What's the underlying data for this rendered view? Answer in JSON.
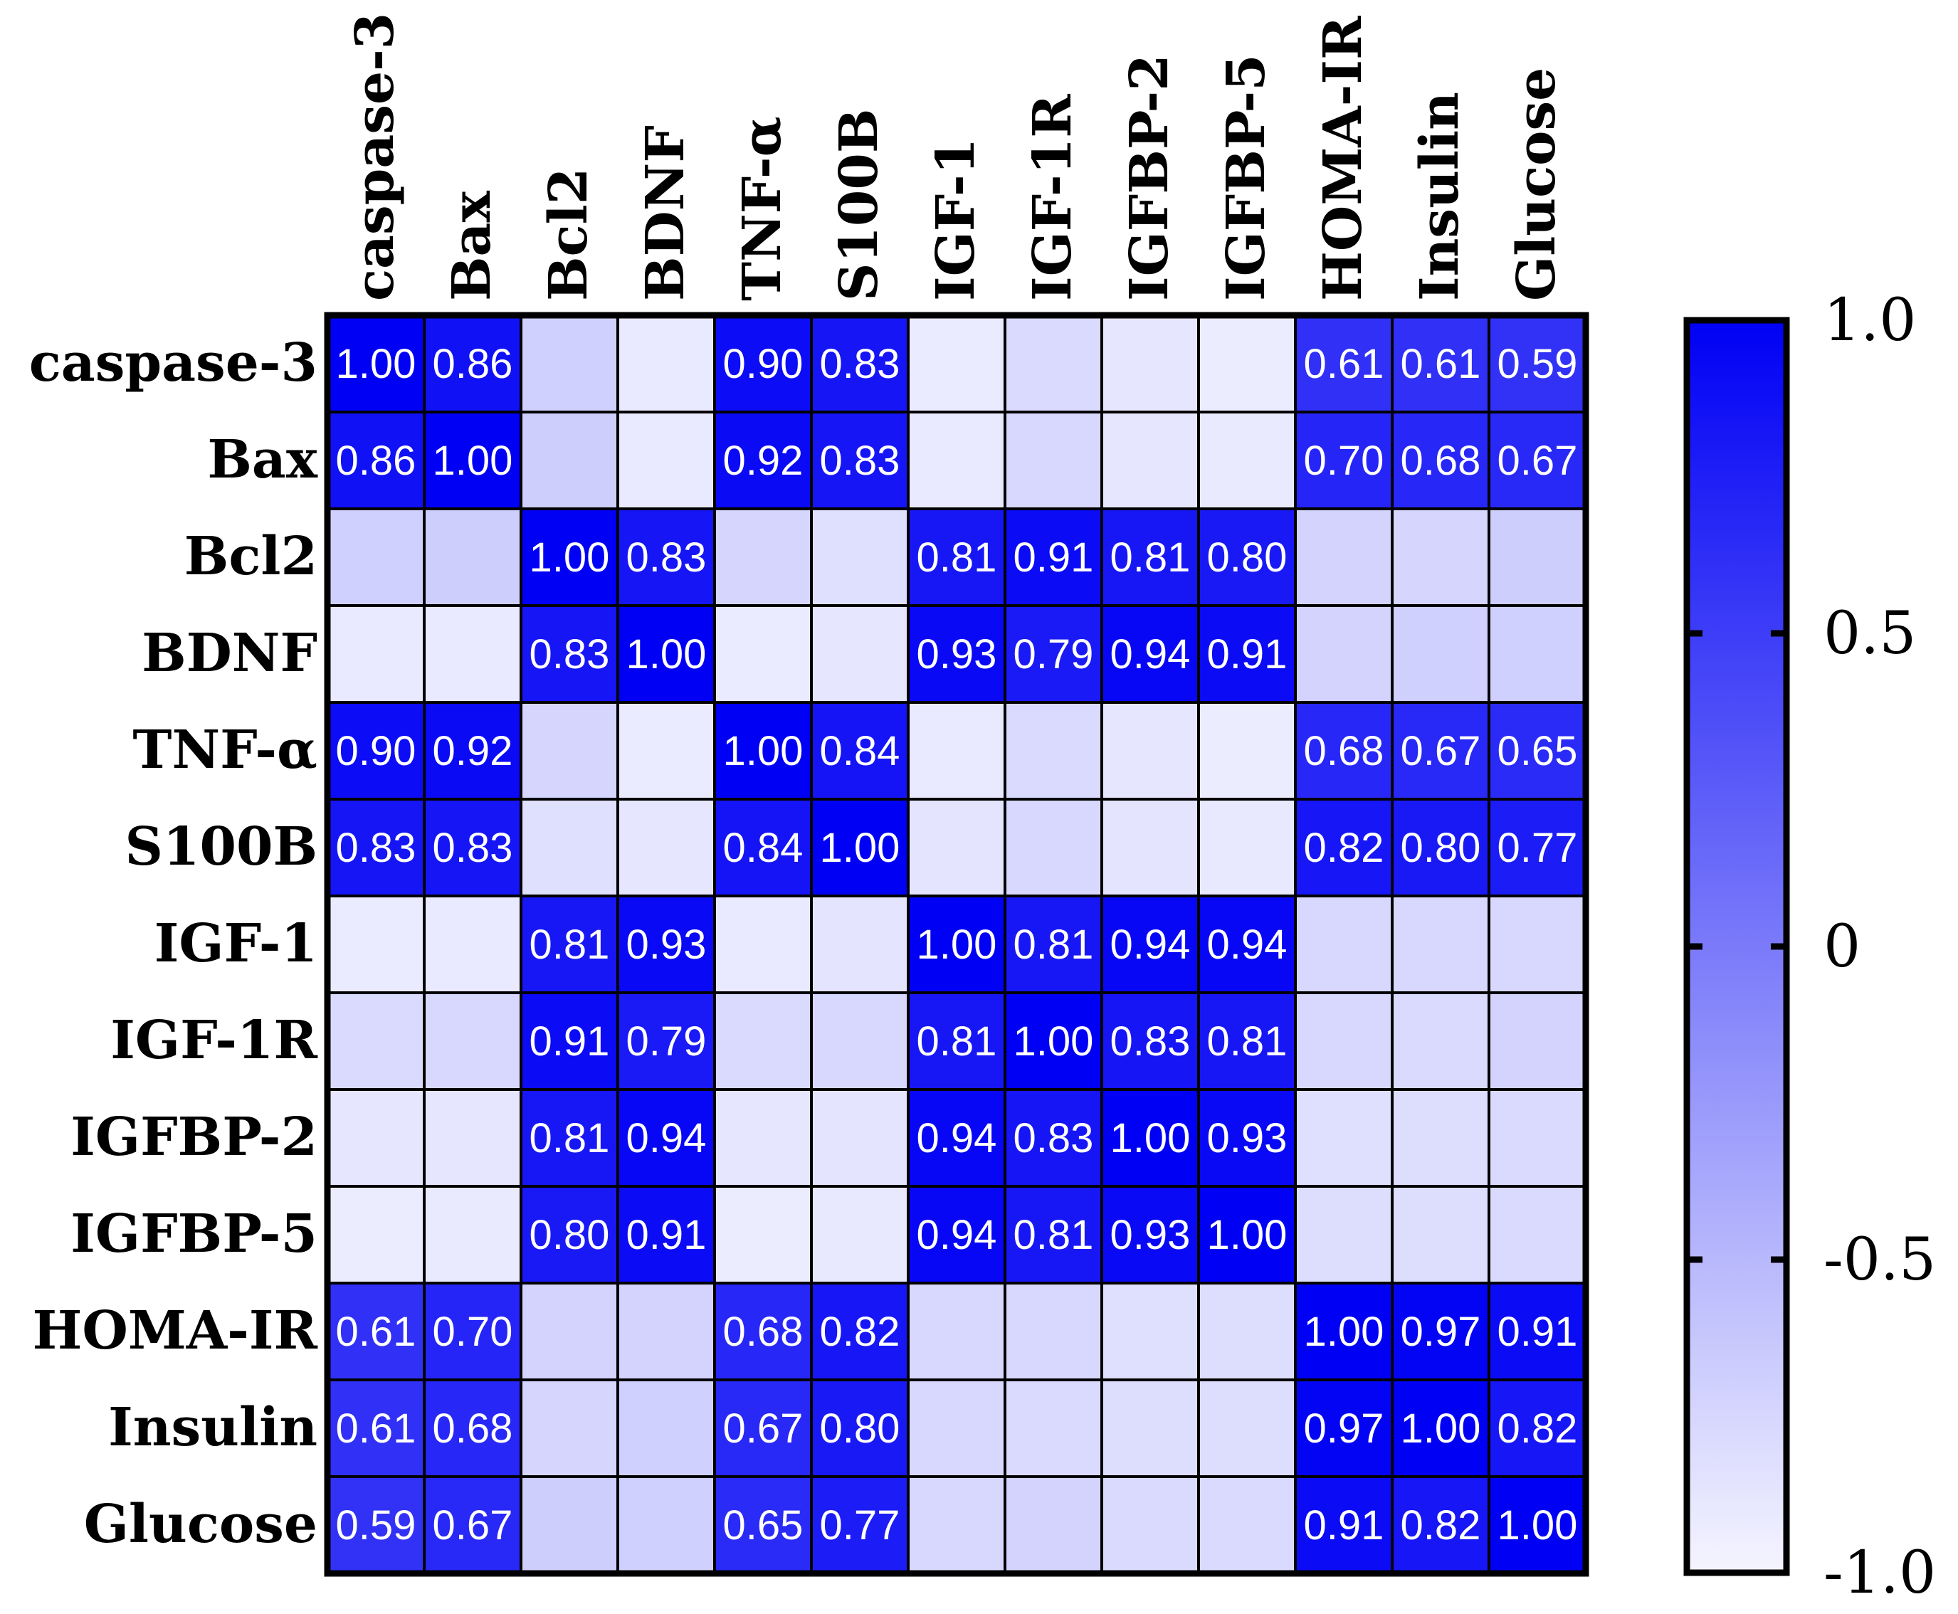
{
  "chart_data": {
    "type": "heatmap",
    "title": "",
    "variables": [
      "caspase-3",
      "Bax",
      "Bcl2",
      "BDNF",
      "TNF-α",
      "S100B",
      "IGF-1",
      "IGF-1R",
      "IGFBP-2",
      "IGFBP-5",
      "HOMA-IR",
      "Insulin",
      "Glucose"
    ],
    "matrix": [
      [
        1.0,
        0.86,
        -0.7,
        -0.9,
        0.9,
        0.83,
        -0.92,
        -0.78,
        -0.88,
        -0.93,
        0.61,
        0.61,
        0.59
      ],
      [
        0.86,
        1.0,
        -0.68,
        -0.9,
        0.92,
        0.83,
        -0.9,
        -0.76,
        -0.88,
        -0.91,
        0.7,
        0.68,
        0.67
      ],
      [
        -0.7,
        -0.68,
        1.0,
        0.83,
        -0.74,
        -0.82,
        0.81,
        0.91,
        0.81,
        0.8,
        -0.72,
        -0.74,
        -0.68
      ],
      [
        -0.9,
        -0.9,
        0.83,
        1.0,
        -0.92,
        -0.88,
        0.93,
        0.79,
        0.94,
        0.91,
        -0.72,
        -0.7,
        -0.7
      ],
      [
        0.9,
        0.92,
        -0.74,
        -0.92,
        1.0,
        0.84,
        -0.9,
        -0.78,
        -0.88,
        -0.93,
        0.68,
        0.67,
        0.65
      ],
      [
        0.83,
        0.83,
        -0.82,
        -0.88,
        0.84,
        1.0,
        -0.86,
        -0.76,
        -0.86,
        -0.89,
        0.82,
        0.8,
        0.77
      ],
      [
        -0.92,
        -0.9,
        0.81,
        0.93,
        -0.9,
        -0.86,
        1.0,
        0.81,
        0.94,
        0.94,
        -0.76,
        -0.76,
        -0.76
      ],
      [
        -0.78,
        -0.76,
        0.91,
        0.79,
        -0.78,
        -0.76,
        0.81,
        1.0,
        0.83,
        0.81,
        -0.76,
        -0.78,
        -0.72
      ],
      [
        -0.88,
        -0.88,
        0.81,
        0.94,
        -0.88,
        -0.86,
        0.94,
        0.83,
        1.0,
        0.93,
        -0.82,
        -0.8,
        -0.78
      ],
      [
        -0.93,
        -0.91,
        0.8,
        0.91,
        -0.93,
        -0.89,
        0.94,
        0.81,
        0.93,
        1.0,
        -0.8,
        -0.8,
        -0.78
      ],
      [
        0.61,
        0.7,
        -0.72,
        -0.72,
        0.68,
        0.82,
        -0.76,
        -0.76,
        -0.82,
        -0.8,
        1.0,
        0.97,
        0.91
      ],
      [
        0.61,
        0.68,
        -0.74,
        -0.7,
        0.67,
        0.8,
        -0.76,
        -0.78,
        -0.8,
        -0.8,
        0.97,
        1.0,
        0.82
      ],
      [
        0.59,
        0.67,
        -0.68,
        -0.7,
        0.65,
        0.77,
        -0.76,
        -0.72,
        -0.78,
        -0.78,
        0.91,
        0.82,
        1.0
      ]
    ],
    "label_threshold": 0,
    "value_range": [
      -1.0,
      1.0
    ],
    "colorbar": {
      "ticks": [
        "1.0",
        "0.5",
        "0",
        "-0.5",
        "-1.0"
      ],
      "tick_values": [
        1.0,
        0.5,
        0,
        -0.5,
        -1.0
      ],
      "color_min": "#f5f5ff",
      "color_max": "#0000f5"
    }
  }
}
